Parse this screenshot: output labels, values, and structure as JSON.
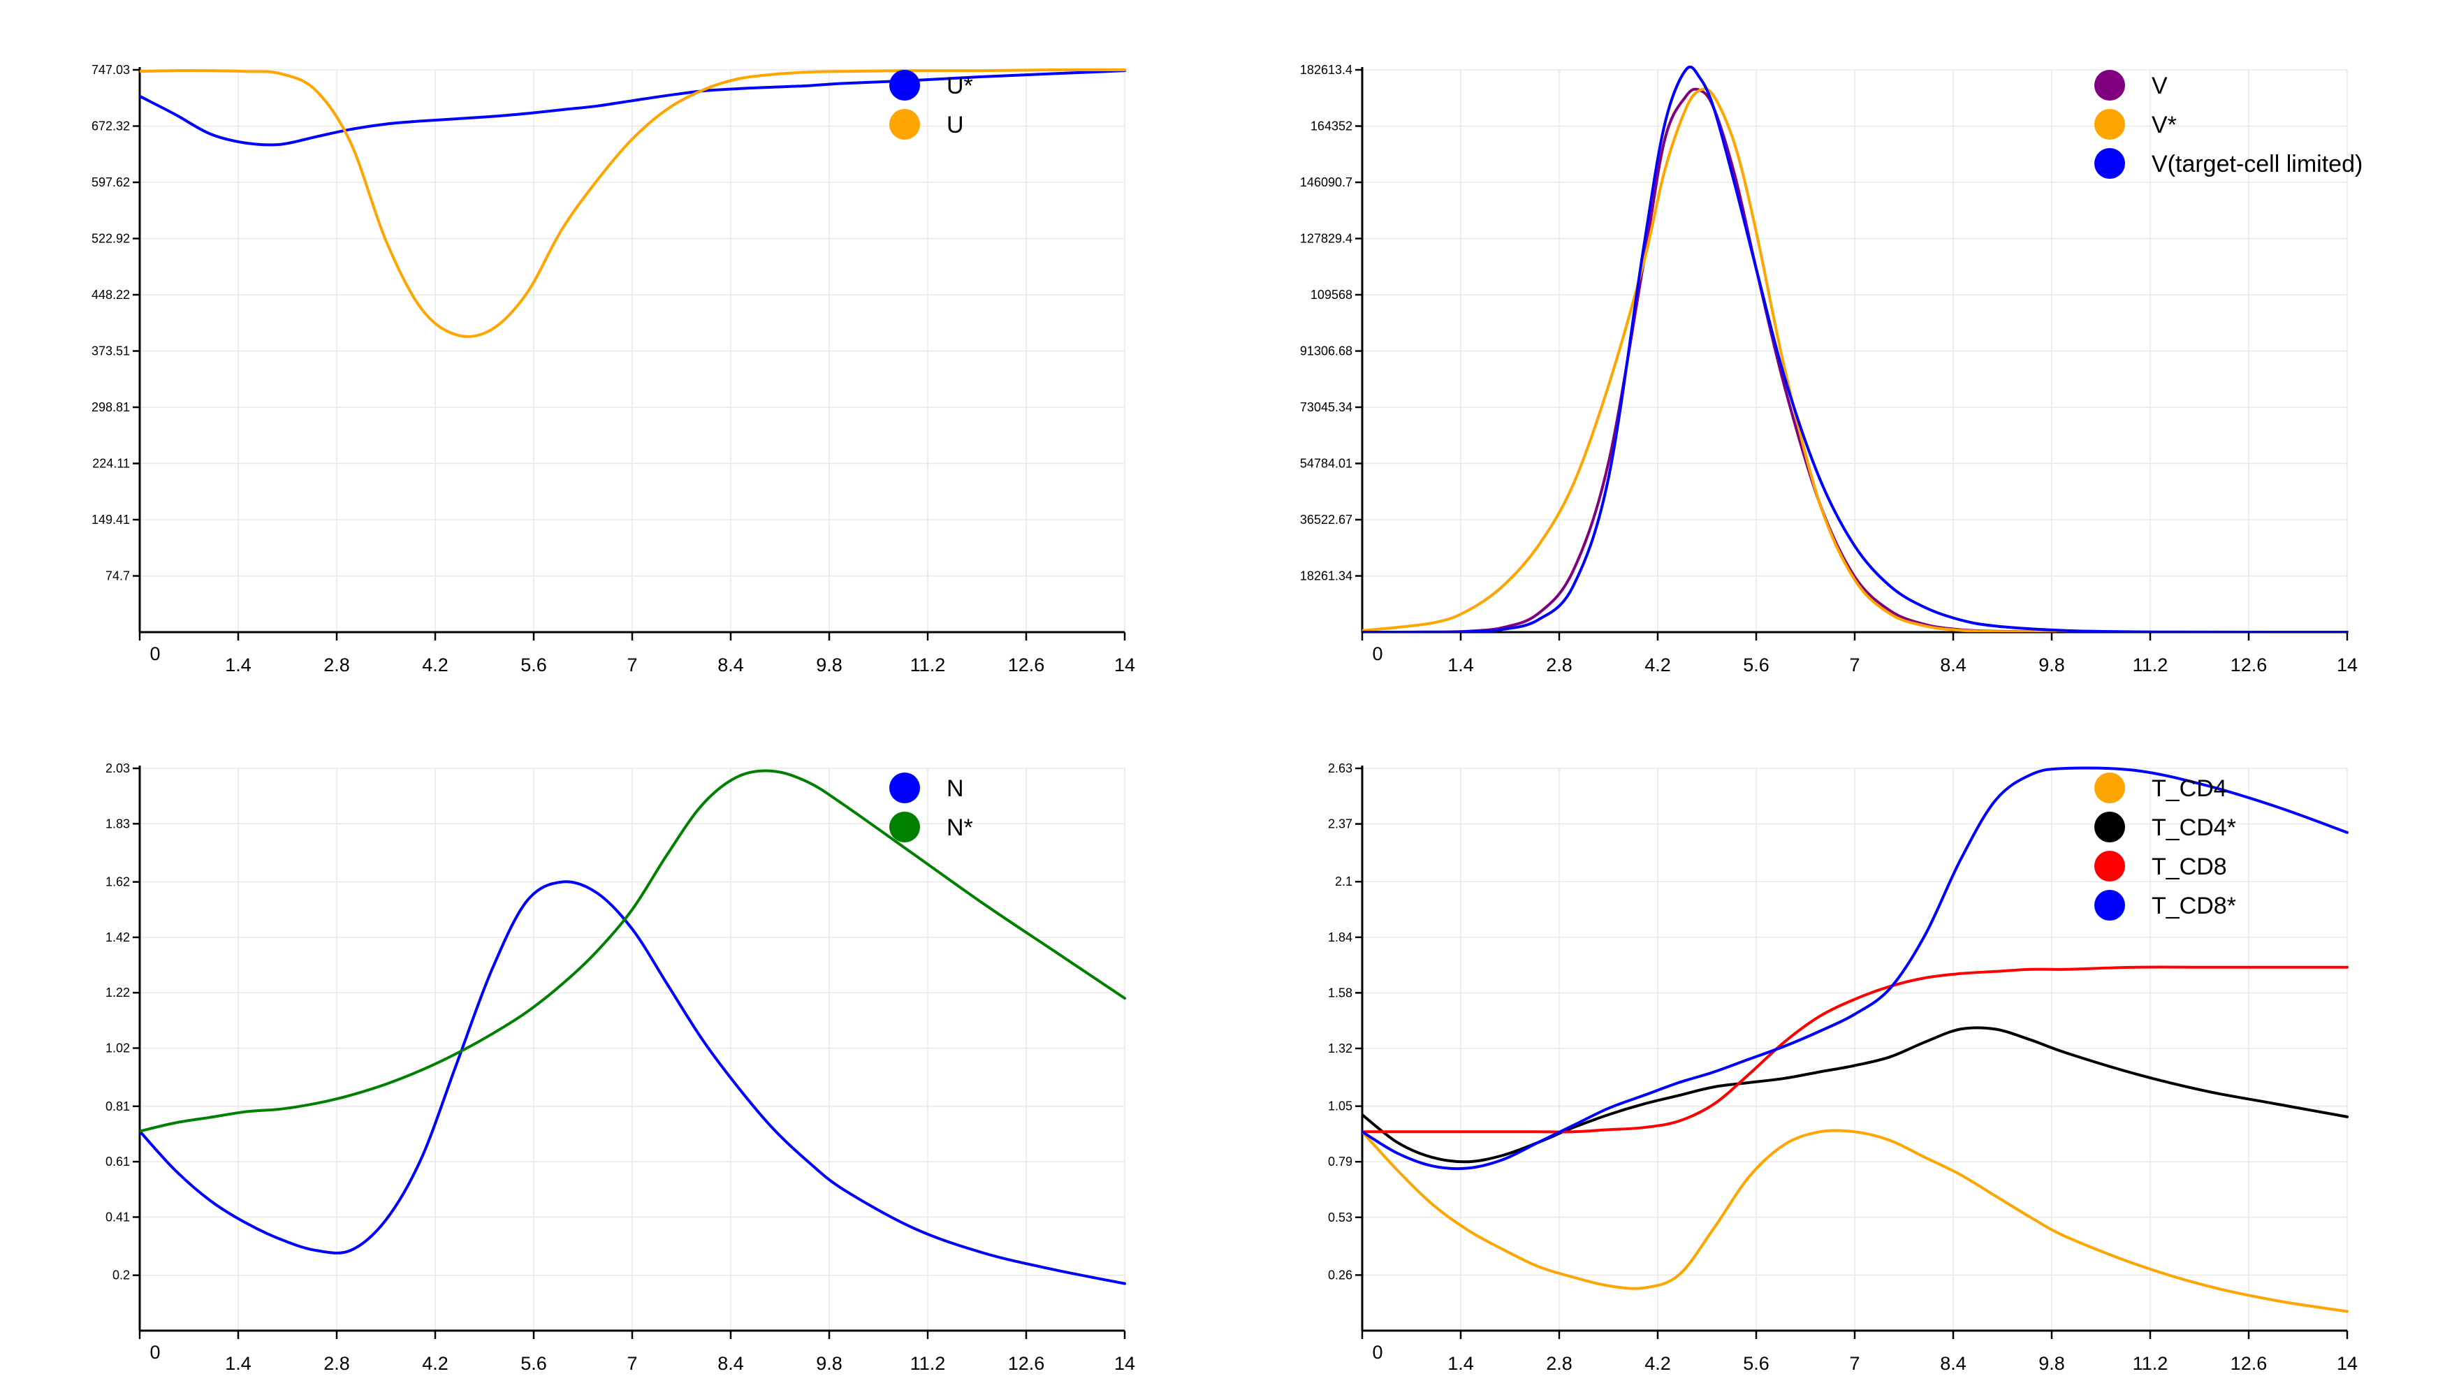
{
  "chart_data": [
    {
      "type": "line",
      "title": "",
      "xlabel": "",
      "ylabel": "",
      "xlim": [
        0,
        14
      ],
      "ylim": [
        0,
        747.03
      ],
      "x_ticks": [
        "0",
        "1.4",
        "2.8",
        "4.2",
        "5.6",
        "7",
        "8.4",
        "9.8",
        "11.2",
        "12.6",
        "14"
      ],
      "y_ticks": [
        "747.03",
        "672.32",
        "597.62",
        "522.92",
        "448.22",
        "373.51",
        "298.81",
        "224.11",
        "149.41",
        "74.7"
      ],
      "grid": true,
      "legend_position": "top-right",
      "x": [
        0,
        0.5,
        1,
        1.5,
        2,
        2.5,
        3,
        3.5,
        4,
        4.5,
        5,
        5.5,
        6,
        6.5,
        7,
        7.5,
        8,
        8.5,
        9,
        9.5,
        10,
        11,
        12,
        13,
        14
      ],
      "series": [
        {
          "name": "U*",
          "color": "#0000ff",
          "values": [
            712,
            688,
            662,
            650,
            648,
            658,
            668,
            675,
            679,
            682,
            685,
            689,
            694,
            699,
            706,
            713,
            719,
            722,
            724,
            726,
            729,
            733,
            738,
            742,
            746
          ]
        },
        {
          "name": "U",
          "color": "#ffa500",
          "values": [
            745,
            746,
            746,
            745,
            742,
            720,
            650,
            520,
            430,
            395,
            402,
            450,
            535,
            600,
            655,
            695,
            720,
            735,
            741,
            744,
            745,
            746,
            746,
            747,
            747
          ]
        }
      ]
    },
    {
      "type": "line",
      "title": "",
      "xlabel": "",
      "ylabel": "",
      "xlim": [
        0,
        14
      ],
      "ylim": [
        0,
        182613.4
      ],
      "x_ticks": [
        "0",
        "1.4",
        "2.8",
        "4.2",
        "5.6",
        "7",
        "8.4",
        "9.8",
        "11.2",
        "12.6",
        "14"
      ],
      "y_ticks": [
        "182613.4",
        "164352",
        "146090.7",
        "127829.4",
        "109568",
        "91306.68",
        "73045.34",
        "54784.01",
        "36522.67",
        "18261.34"
      ],
      "grid": true,
      "legend_position": "top-right",
      "x": [
        0,
        1,
        1.5,
        2,
        2.5,
        3,
        3.5,
        4,
        4.3,
        4.6,
        4.8,
        5,
        5.3,
        5.6,
        6,
        6.5,
        7,
        7.5,
        8,
        8.5,
        9,
        10,
        11,
        12,
        14
      ],
      "series": [
        {
          "name": "V",
          "color": "#800080",
          "values": [
            0,
            50,
            300,
            1500,
            6000,
            20000,
            55000,
            120000,
            160000,
            174000,
            176000,
            170000,
            148000,
            118000,
            80000,
            42000,
            18000,
            7000,
            2500,
            800,
            300,
            60,
            10,
            0,
            0
          ]
        },
        {
          "name": "V*",
          "color": "#ffa500",
          "values": [
            500,
            3000,
            7000,
            15000,
            28000,
            48000,
            80000,
            120000,
            150000,
            170000,
            176000,
            174000,
            158000,
            130000,
            86000,
            42000,
            17000,
            6000,
            2000,
            600,
            200,
            40,
            8,
            0,
            0
          ]
        },
        {
          "name": "V(target-cell limited)",
          "color": "#0000ff",
          "values": [
            0,
            20,
            150,
            900,
            4000,
            15000,
            50000,
            125000,
            165000,
            182613,
            180000,
            170000,
            145000,
            118000,
            83000,
            50000,
            28000,
            15000,
            8000,
            4000,
            2000,
            500,
            120,
            30,
            0
          ]
        }
      ]
    },
    {
      "type": "line",
      "title": "",
      "xlabel": "",
      "ylabel": "",
      "xlim": [
        0,
        14
      ],
      "ylim": [
        0,
        2.03
      ],
      "x_ticks": [
        "0",
        "1.4",
        "2.8",
        "4.2",
        "5.6",
        "7",
        "8.4",
        "9.8",
        "11.2",
        "12.6",
        "14"
      ],
      "y_ticks": [
        "2.03",
        "1.83",
        "1.62",
        "1.42",
        "1.22",
        "1.02",
        "0.81",
        "0.61",
        "0.41",
        "0.2"
      ],
      "grid": true,
      "legend_position": "top-right",
      "x": [
        0,
        0.5,
        1,
        1.5,
        2,
        2.5,
        3,
        3.5,
        4,
        4.5,
        5,
        5.5,
        6,
        6.5,
        7,
        7.5,
        8,
        8.5,
        9,
        9.5,
        10,
        11,
        12,
        13,
        14
      ],
      "series": [
        {
          "name": "N",
          "color": "#0000ff",
          "values": [
            0.72,
            0.58,
            0.47,
            0.39,
            0.33,
            0.29,
            0.29,
            0.4,
            0.62,
            0.96,
            1.3,
            1.55,
            1.62,
            1.58,
            1.45,
            1.25,
            1.05,
            0.88,
            0.73,
            0.61,
            0.51,
            0.37,
            0.28,
            0.22,
            0.17
          ]
        },
        {
          "name": "N*",
          "color": "#008000",
          "values": [
            0.72,
            0.75,
            0.77,
            0.79,
            0.8,
            0.82,
            0.85,
            0.89,
            0.94,
            1.0,
            1.07,
            1.15,
            1.25,
            1.37,
            1.52,
            1.72,
            1.9,
            2.0,
            2.02,
            1.98,
            1.9,
            1.72,
            1.54,
            1.37,
            1.2
          ]
        }
      ]
    },
    {
      "type": "line",
      "title": "",
      "xlabel": "",
      "ylabel": "",
      "xlim": [
        0,
        14
      ],
      "ylim": [
        0,
        2.63
      ],
      "x_ticks": [
        "0",
        "1.4",
        "2.8",
        "4.2",
        "5.6",
        "7",
        "8.4",
        "9.8",
        "11.2",
        "12.6",
        "14"
      ],
      "y_ticks": [
        "2.63",
        "2.37",
        "2.1",
        "1.84",
        "1.58",
        "1.32",
        "1.05",
        "0.79",
        "0.53",
        "0.26"
      ],
      "grid": true,
      "legend_position": "top-right",
      "x": [
        0,
        0.5,
        1,
        1.5,
        2,
        2.5,
        3,
        3.5,
        4,
        4.5,
        5,
        5.5,
        6,
        6.5,
        7,
        7.5,
        8,
        8.5,
        9,
        9.5,
        10,
        11,
        12,
        13,
        14
      ],
      "series": [
        {
          "name": "T_CD4",
          "color": "#ffa500",
          "values": [
            0.93,
            0.75,
            0.59,
            0.47,
            0.38,
            0.3,
            0.25,
            0.21,
            0.2,
            0.26,
            0.48,
            0.72,
            0.87,
            0.93,
            0.93,
            0.89,
            0.81,
            0.73,
            0.63,
            0.53,
            0.44,
            0.31,
            0.21,
            0.14,
            0.09
          ]
        },
        {
          "name": "T_CD4*",
          "color": "#000000",
          "values": [
            1.01,
            0.88,
            0.81,
            0.79,
            0.82,
            0.88,
            0.95,
            1.01,
            1.06,
            1.1,
            1.14,
            1.16,
            1.18,
            1.21,
            1.24,
            1.28,
            1.35,
            1.41,
            1.41,
            1.36,
            1.3,
            1.2,
            1.12,
            1.06,
            1.0
          ]
        },
        {
          "name": "T_CD8",
          "color": "#ff0000",
          "values": [
            0.93,
            0.93,
            0.93,
            0.93,
            0.93,
            0.93,
            0.93,
            0.94,
            0.95,
            0.98,
            1.06,
            1.2,
            1.35,
            1.47,
            1.55,
            1.61,
            1.65,
            1.67,
            1.68,
            1.69,
            1.69,
            1.7,
            1.7,
            1.7,
            1.7
          ]
        },
        {
          "name": "T_CD8*",
          "color": "#0000ff",
          "values": [
            0.93,
            0.83,
            0.77,
            0.76,
            0.8,
            0.88,
            0.96,
            1.04,
            1.1,
            1.16,
            1.21,
            1.27,
            1.33,
            1.4,
            1.48,
            1.6,
            1.85,
            2.2,
            2.48,
            2.6,
            2.63,
            2.62,
            2.55,
            2.45,
            2.33
          ]
        }
      ]
    }
  ]
}
